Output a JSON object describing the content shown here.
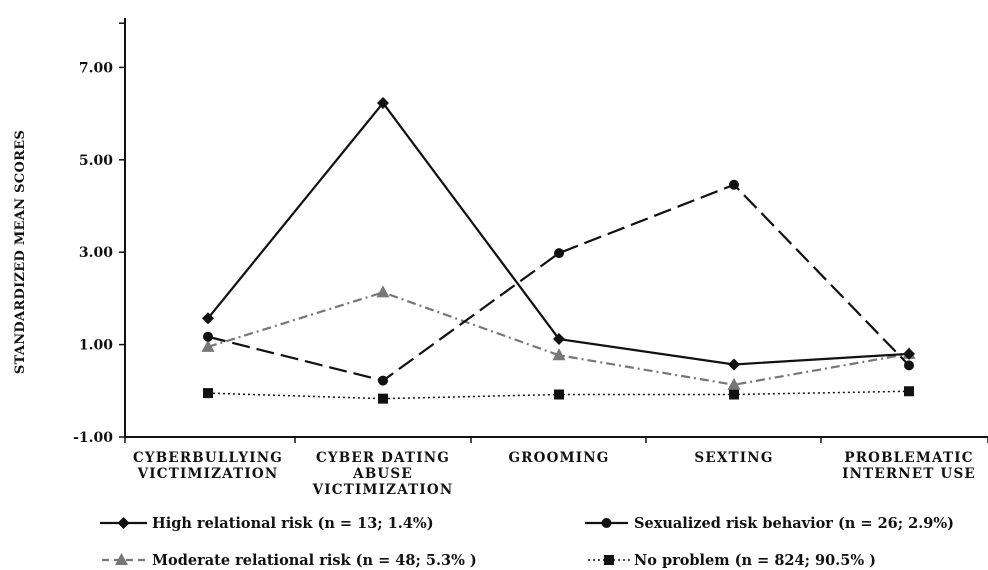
{
  "chart_data": {
    "type": "line",
    "ylabel": "STANDARDIZED MEAN SCORES",
    "xlabel": "",
    "ylim": [
      -1.0,
      8.0
    ],
    "yticks": [
      -1.0,
      1.0,
      3.0,
      5.0,
      7.0
    ],
    "ytick_labels": [
      "-1.00",
      "1.00",
      "3.00",
      "5.00",
      "7.00"
    ],
    "categories": [
      [
        "CYBERBULLYING",
        "VICTIMIZATION"
      ],
      [
        "CYBER DATING",
        "ABUSE",
        "VICTIMIZATION"
      ],
      [
        "GROOMING"
      ],
      [
        "SEXTING"
      ],
      [
        "PROBLEMATIC",
        "INTERNET USE"
      ]
    ],
    "legend_position": "bottom",
    "grid": false,
    "series": [
      {
        "name": "High relational risk (n = 13; 1.4%)",
        "values": [
          1.57,
          6.23,
          1.12,
          0.57,
          0.8
        ],
        "style": "solid",
        "marker": "diamond",
        "color": "#111111"
      },
      {
        "name": "Sexualized risk behavior (n = 26; 2.9%)",
        "values": [
          1.17,
          0.22,
          2.98,
          4.46,
          0.55
        ],
        "style": "longdash",
        "marker": "circle",
        "color": "#111111"
      },
      {
        "name": "Moderate relational risk (n = 48; 5.3% )",
        "values": [
          0.95,
          2.13,
          0.77,
          0.13,
          0.8
        ],
        "style": "dashdot",
        "marker": "triangle",
        "color": "#777777"
      },
      {
        "name": "No problem (n = 824; 90.5% )",
        "values": [
          -0.05,
          -0.17,
          -0.08,
          -0.08,
          -0.01
        ],
        "style": "dotted",
        "marker": "square",
        "color": "#111111"
      }
    ]
  }
}
